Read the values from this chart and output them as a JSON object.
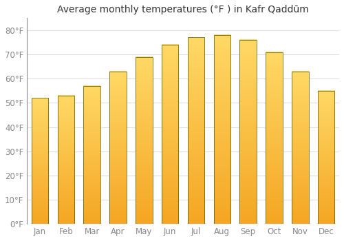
{
  "title": "Average monthly temperatures (°F ) in Kafr Qaddūm",
  "months": [
    "Jan",
    "Feb",
    "Mar",
    "Apr",
    "May",
    "Jun",
    "Jul",
    "Aug",
    "Sep",
    "Oct",
    "Nov",
    "Dec"
  ],
  "values": [
    52,
    53,
    57,
    63,
    69,
    74,
    77,
    78,
    76,
    71,
    63,
    55
  ],
  "bar_color_bottom": "#F5A623",
  "bar_color_top": "#FFD966",
  "bar_edge_color": "#888800",
  "background_color": "#FFFFFF",
  "grid_color": "#DDDDDD",
  "ylim": [
    0,
    85
  ],
  "yticks": [
    0,
    10,
    20,
    30,
    40,
    50,
    60,
    70,
    80
  ],
  "title_fontsize": 10,
  "tick_fontsize": 8.5,
  "tick_color": "#888888"
}
